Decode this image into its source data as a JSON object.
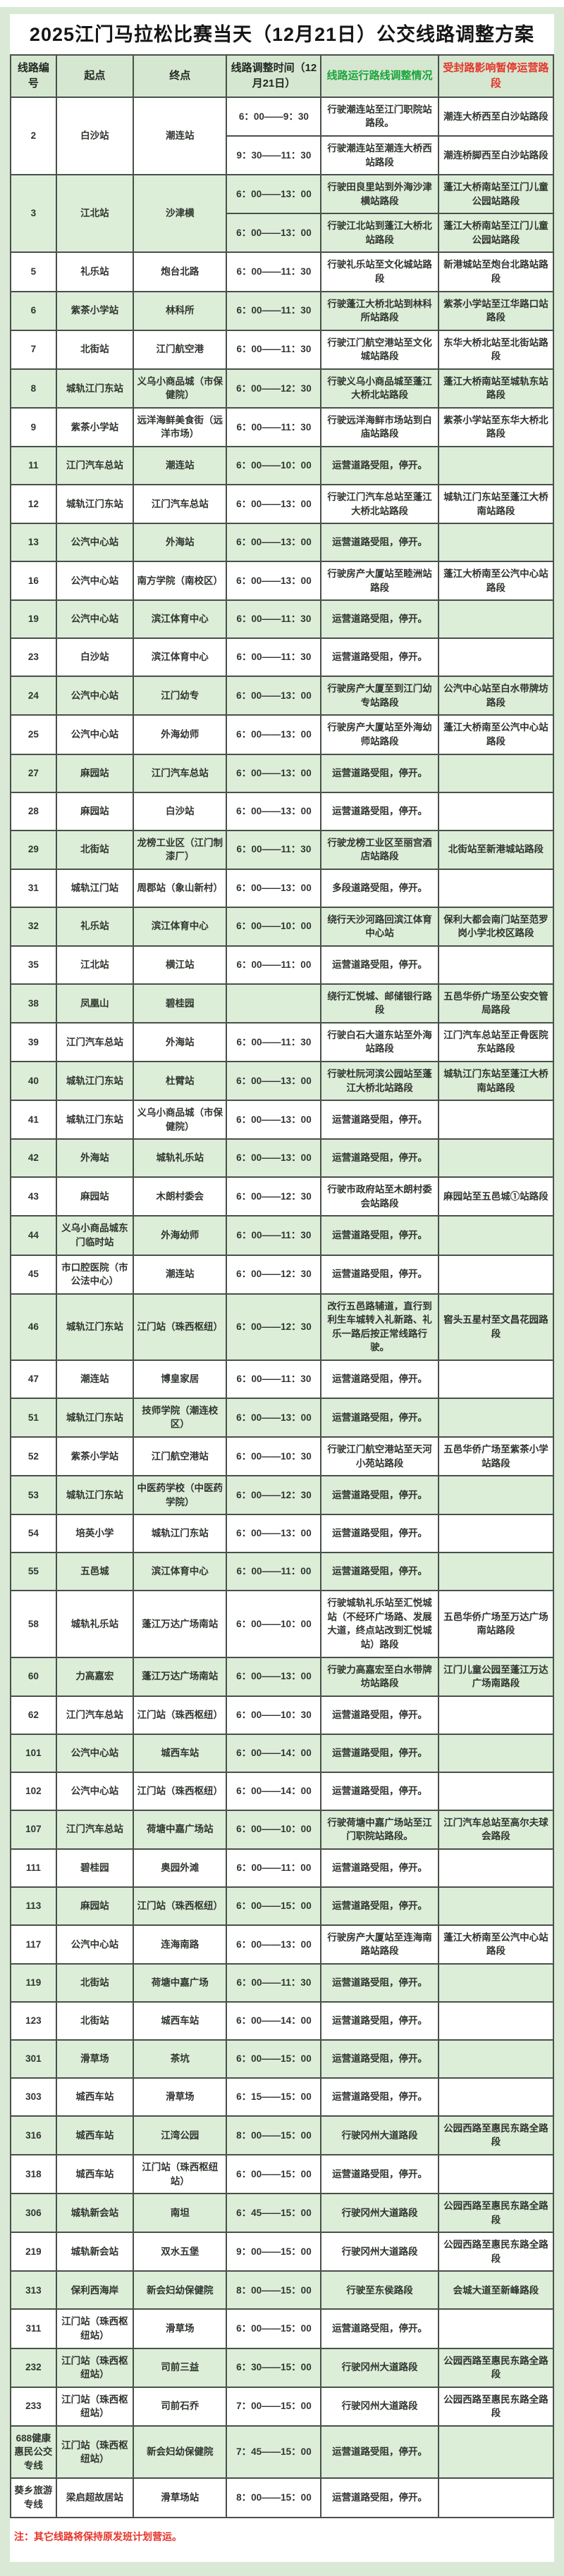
{
  "title": "2025江门马拉松比赛当天（12月21日）公交线路调整方案",
  "note": "注：其它线路将保持原发班计划营运。",
  "colors": {
    "page_bg": "#d9e9d5",
    "row_green": "#dcedd8",
    "header_bg": "#d5e7d0",
    "header_green_text": "#1ba43c",
    "header_red_text": "#e5342a",
    "border": "#49504a"
  },
  "table": {
    "headers": [
      "线路编号",
      "起点",
      "终点",
      "线路调整时间（12月21日）",
      "线路运行路线调整情况",
      "受封路影响暂停运营路段"
    ],
    "rows": [
      {
        "no": "2",
        "start": "白沙站",
        "end": "潮连站",
        "subs": [
          {
            "time": "6：00——9：30",
            "adjust": "行驶潮连站至江门职院站路段。",
            "suspended": "潮连大桥西至白沙站路段"
          },
          {
            "time": "9：30——11：30",
            "adjust": "行驶潮连站至潮连大桥西站路段",
            "suspended": "潮连桥脚西至白沙站路段"
          }
        ]
      },
      {
        "no": "3",
        "start": "江北站",
        "end": "沙津横",
        "subs": [
          {
            "time": "6：00——13：00",
            "adjust": "行驶田良里站到外海沙津横站路段",
            "suspended": "蓬江大桥南站至江门儿童公园站路段"
          },
          {
            "time": "6：00——13：00",
            "adjust": "行驶江北站到蓬江大桥北站路段",
            "suspended": "蓬江大桥南站至江门儿童公园站路段"
          }
        ]
      },
      {
        "no": "5",
        "start": "礼乐站",
        "end": "炮台北路",
        "subs": [
          {
            "time": "6：00——11：30",
            "adjust": "行驶礼乐站至文化城站路段",
            "suspended": "新港城站至炮台北路站路段"
          }
        ]
      },
      {
        "no": "6",
        "start": "紫茶小学站",
        "end": "林科所",
        "subs": [
          {
            "time": "6：00——11：30",
            "adjust": "行驶蓬江大桥北站到林科所站路段",
            "suspended": "紫茶小学站至江华路口站路段"
          }
        ]
      },
      {
        "no": "7",
        "start": "北街站",
        "end": "江门航空港",
        "subs": [
          {
            "time": "6：00——11：30",
            "adjust": "行驶江门航空港站至文化城站路段",
            "suspended": "东华大桥北站至北街站路段"
          }
        ]
      },
      {
        "no": "8",
        "start": "城轨江门东站",
        "end": "义乌小商品城（市保健院）",
        "subs": [
          {
            "time": "6：00——12：30",
            "adjust": "行驶义乌小商品城至蓬江大桥北站路段",
            "suspended": "蓬江大桥南站至城轨东站路段"
          }
        ]
      },
      {
        "no": "9",
        "start": "紫茶小学站",
        "end": "远洋海鲜美食街（远洋市场）",
        "subs": [
          {
            "time": "6：00——11：30",
            "adjust": "行驶远洋海鲜市场站到白庙站路段",
            "suspended": "紫茶小学站至东华大桥北路段"
          }
        ]
      },
      {
        "no": "11",
        "start": "江门汽车总站",
        "end": "潮连站",
        "subs": [
          {
            "time": "6：00——10：00",
            "adjust": "运营道路受阻，停开。",
            "suspended": ""
          }
        ]
      },
      {
        "no": "12",
        "start": "城轨江门东站",
        "end": "江门汽车总站",
        "subs": [
          {
            "time": "6：00——13：00",
            "adjust": "行驶江门汽车总站至蓬江大桥北站路段",
            "suspended": "城轨江门东站至蓬江大桥南站路段"
          }
        ]
      },
      {
        "no": "13",
        "start": "公汽中心站",
        "end": "外海站",
        "subs": [
          {
            "time": "6：00——13：00",
            "adjust": "运营道路受阻，停开。",
            "suspended": ""
          }
        ]
      },
      {
        "no": "16",
        "start": "公汽中心站",
        "end": "南方学院（南校区）",
        "subs": [
          {
            "time": "6：00——13：00",
            "adjust": "行驶房产大厦站至睦洲站路段",
            "suspended": "蓬江大桥南至公汽中心站路段"
          }
        ]
      },
      {
        "no": "19",
        "start": "公汽中心站",
        "end": "滨江体育中心",
        "subs": [
          {
            "time": "6：00——11：30",
            "adjust": "运营道路受阻，停开。",
            "suspended": ""
          }
        ]
      },
      {
        "no": "23",
        "start": "白沙站",
        "end": "滨江体育中心",
        "subs": [
          {
            "time": "6：00——11：30",
            "adjust": "运营道路受阻，停开。",
            "suspended": ""
          }
        ]
      },
      {
        "no": "24",
        "start": "公汽中心站",
        "end": "江门幼专",
        "subs": [
          {
            "time": "6：00——13：00",
            "adjust": "行驶房产大厦至到江门幼专站路段",
            "suspended": "公汽中心站至白水带牌坊路段"
          }
        ]
      },
      {
        "no": "25",
        "start": "公汽中心站",
        "end": "外海幼师",
        "subs": [
          {
            "time": "6：00——13：00",
            "adjust": "行驶房产大厦站至外海幼师站路段",
            "suspended": "蓬江大桥南至公汽中心站路段"
          }
        ]
      },
      {
        "no": "27",
        "start": "麻园站",
        "end": "江门汽车总站",
        "subs": [
          {
            "time": "6：00——13：00",
            "adjust": "运营道路受阻，停开。",
            "suspended": ""
          }
        ]
      },
      {
        "no": "28",
        "start": "麻园站",
        "end": "白沙站",
        "subs": [
          {
            "time": "6：00——13：00",
            "adjust": "运营道路受阻，停开。",
            "suspended": ""
          }
        ]
      },
      {
        "no": "29",
        "start": "北街站",
        "end": "龙榜工业区（江门制漆厂）",
        "subs": [
          {
            "time": "6：00——11：30",
            "adjust": "行驶龙榜工业区至丽宫酒店站路段",
            "suspended": "北街站至新港城站路段"
          }
        ]
      },
      {
        "no": "31",
        "start": "城轨江门站",
        "end": "周郡站（象山新村）",
        "subs": [
          {
            "time": "6：00——13：00",
            "adjust": "多段道路受阻，停开。",
            "suspended": ""
          }
        ]
      },
      {
        "no": "32",
        "start": "礼乐站",
        "end": "滨江体育中心",
        "subs": [
          {
            "time": "6：00——10：00",
            "adjust": "绕行天沙河路回滨江体育中心站",
            "suspended": "保利大都会南门站至范罗岗小学北校区路段"
          }
        ]
      },
      {
        "no": "35",
        "start": "江北站",
        "end": "横江站",
        "subs": [
          {
            "time": "6：00——11：00",
            "adjust": "运营道路受阻，停开。",
            "suspended": ""
          }
        ]
      },
      {
        "no": "38",
        "start": "凤凰山",
        "end": "碧桂园",
        "subs": [
          {
            "time": "",
            "adjust": "绕行汇悦城、邮储银行路段",
            "suspended": "五邑华侨广场至公安交管局路段"
          }
        ]
      },
      {
        "no": "39",
        "start": "江门汽车总站",
        "end": "外海站",
        "subs": [
          {
            "time": "6：00——11：30",
            "adjust": "行驶白石大道东站至外海站路段",
            "suspended": "江门汽车总站至正骨医院东站路段"
          }
        ]
      },
      {
        "no": "40",
        "start": "城轨江门东站",
        "end": "杜臂站",
        "subs": [
          {
            "time": "6：00——13：00",
            "adjust": "行驶杜阮河滨公园站至蓬江大桥北站路段",
            "suspended": "城轨江门东站至蓬江大桥南站路段"
          }
        ]
      },
      {
        "no": "41",
        "start": "城轨江门东站",
        "end": "义乌小商品城（市保健院）",
        "subs": [
          {
            "time": "6：00——13：00",
            "adjust": "运营道路受阻，停开。",
            "suspended": ""
          }
        ]
      },
      {
        "no": "42",
        "start": "外海站",
        "end": "城轨礼乐站",
        "subs": [
          {
            "time": "6：00——13：00",
            "adjust": "运营道路受阻，停开。",
            "suspended": ""
          }
        ]
      },
      {
        "no": "43",
        "start": "麻园站",
        "end": "木朗村委会",
        "subs": [
          {
            "time": "6：00——12：30",
            "adjust": "行驶市政府站至木朗村委会站路段",
            "suspended": "麻园站至五邑城①站路段"
          }
        ]
      },
      {
        "no": "44",
        "start": "义乌小商品城东门临时站",
        "end": "外海幼师",
        "subs": [
          {
            "time": "6：00——11：30",
            "adjust": "运营道路受阻，停开。",
            "suspended": ""
          }
        ]
      },
      {
        "no": "45",
        "start": "市口腔医院（市公法中心）",
        "end": "潮连站",
        "subs": [
          {
            "time": "6：00——12：30",
            "adjust": "运营道路受阻，停开。",
            "suspended": ""
          }
        ]
      },
      {
        "no": "46",
        "start": "城轨江门东站",
        "end": "江门站（珠西枢纽）",
        "subs": [
          {
            "time": "6：00——12：30",
            "adjust": "改行五邑路辅道，直行到利生车城转入礼新路、礼乐一路后按正常线路行驶。",
            "suspended": "窖头五星村至文昌花园路段"
          }
        ]
      },
      {
        "no": "47",
        "start": "潮连站",
        "end": "博皇家居",
        "subs": [
          {
            "time": "6：00——11：30",
            "adjust": "运营道路受阻，停开。",
            "suspended": ""
          }
        ]
      },
      {
        "no": "51",
        "start": "城轨江门东站",
        "end": "技师学院（潮连校区）",
        "subs": [
          {
            "time": "6：00——13：00",
            "adjust": "运营道路受阻，停开。",
            "suspended": ""
          }
        ]
      },
      {
        "no": "52",
        "start": "紫茶小学站",
        "end": "江门航空港站",
        "subs": [
          {
            "time": "6：00——10：30",
            "adjust": "行驶江门航空港站至天河小苑站路段",
            "suspended": "五邑华侨广场至紫茶小学站路段"
          }
        ]
      },
      {
        "no": "53",
        "start": "城轨江门东站",
        "end": "中医药学校（中医药学院）",
        "subs": [
          {
            "time": "6：00——12：30",
            "adjust": "运营道路受阻，停开。",
            "suspended": ""
          }
        ]
      },
      {
        "no": "54",
        "start": "培英小学",
        "end": "城轨江门东站",
        "subs": [
          {
            "time": "6：00——13：00",
            "adjust": "运营道路受阻，停开。",
            "suspended": ""
          }
        ]
      },
      {
        "no": "55",
        "start": "五邑城",
        "end": "滨江体育中心",
        "subs": [
          {
            "time": "6：00——11：00",
            "adjust": "运营道路受阻，停开。",
            "suspended": ""
          }
        ]
      },
      {
        "no": "58",
        "start": "城轨礼乐站",
        "end": "蓬江万达广场南站",
        "subs": [
          {
            "time": "6：00——10：00",
            "adjust": "行驶城轨礼乐站至汇悦城站（不经环广场路、发展大道，终点站改到汇悦城站）路段",
            "suspended": "五邑华侨广场至万达广场南站路段"
          }
        ]
      },
      {
        "no": "60",
        "start": "力高嘉宏",
        "end": "蓬江万达广场南站",
        "subs": [
          {
            "time": "6：00——13：00",
            "adjust": "行驶力高嘉宏至白水带牌坊站路段",
            "suspended": "江门儿童公园至蓬江万达广场南路段"
          }
        ]
      },
      {
        "no": "62",
        "start": "江门汽车总站",
        "end": "江门站（珠西枢纽）",
        "subs": [
          {
            "time": "6：00——10：30",
            "adjust": "运营道路受阻，停开。",
            "suspended": ""
          }
        ]
      },
      {
        "no": "101",
        "start": "公汽中心站",
        "end": "城西车站",
        "subs": [
          {
            "time": "6：00——14：00",
            "adjust": "运营道路受阻，停开。",
            "suspended": ""
          }
        ]
      },
      {
        "no": "102",
        "start": "公汽中心站",
        "end": "江门站（珠西枢纽）",
        "subs": [
          {
            "time": "6：00——14：00",
            "adjust": "运营道路受阻，停开。",
            "suspended": ""
          }
        ]
      },
      {
        "no": "107",
        "start": "江门汽车总站",
        "end": "荷塘中嘉广场站",
        "subs": [
          {
            "time": "6：00——10：00",
            "adjust": "行驶荷塘中嘉广场站至江门职院站路段。",
            "suspended": "江门汽车总站至高尔夫球会路段"
          }
        ]
      },
      {
        "no": "111",
        "start": "碧桂园",
        "end": "奥园外滩",
        "subs": [
          {
            "time": "6：00——11：00",
            "adjust": "运营道路受阻，停开。",
            "suspended": ""
          }
        ]
      },
      {
        "no": "113",
        "start": "麻园站",
        "end": "江门站（珠西枢纽）",
        "subs": [
          {
            "time": "6：00——15：00",
            "adjust": "运营道路受阻，停开。",
            "suspended": ""
          }
        ]
      },
      {
        "no": "117",
        "start": "公汽中心站",
        "end": "连海南路",
        "subs": [
          {
            "time": "6：00——13：00",
            "adjust": "行驶房产大厦站至连海南路站路段",
            "suspended": "蓬江大桥南至公汽中心站路段"
          }
        ]
      },
      {
        "no": "119",
        "start": "北街站",
        "end": "荷塘中嘉广场",
        "subs": [
          {
            "time": "6：00——11：30",
            "adjust": "运营道路受阻，停开。",
            "suspended": ""
          }
        ]
      },
      {
        "no": "123",
        "start": "北街站",
        "end": "城西车站",
        "subs": [
          {
            "time": "6：00——14：00",
            "adjust": "运营道路受阻，停开。",
            "suspended": ""
          }
        ]
      },
      {
        "no": "301",
        "start": "滑草场",
        "end": "茶坑",
        "subs": [
          {
            "time": "6：00——15：00",
            "adjust": "运营道路受阻，停开。",
            "suspended": ""
          }
        ]
      },
      {
        "no": "303",
        "start": "城西车站",
        "end": "滑草场",
        "subs": [
          {
            "time": "6：15——15：00",
            "adjust": "运营道路受阻，停开。",
            "suspended": ""
          }
        ]
      },
      {
        "no": "316",
        "start": "城西车站",
        "end": "江湾公园",
        "subs": [
          {
            "time": "8：00——15：00",
            "adjust": "行驶冈州大道路段",
            "suspended": "公园西路至惠民东路全路段"
          }
        ]
      },
      {
        "no": "318",
        "start": "城西车站",
        "end": "江门站（珠西枢纽站）",
        "subs": [
          {
            "time": "6：00——15：00",
            "adjust": "运营道路受阻，停开。",
            "suspended": ""
          }
        ]
      },
      {
        "no": "306",
        "start": "城轨新会站",
        "end": "南坦",
        "subs": [
          {
            "time": "6：45——15：00",
            "adjust": "行驶冈州大道路段",
            "suspended": "公园西路至惠民东路全路段"
          }
        ]
      },
      {
        "no": "219",
        "start": "城轨新会站",
        "end": "双水五堡",
        "subs": [
          {
            "time": "9：00——15：00",
            "adjust": "行驶冈州大道路段",
            "suspended": "公园西路至惠民东路全路段"
          }
        ]
      },
      {
        "no": "313",
        "start": "保利西海岸",
        "end": "新会妇幼保健院",
        "subs": [
          {
            "time": "8：00——15：00",
            "adjust": "行驶至东侯路段",
            "suspended": "会城大道至新峰路段"
          }
        ]
      },
      {
        "no": "311",
        "start": "江门站（珠西枢纽站）",
        "end": "滑草场",
        "subs": [
          {
            "time": "6：00——15：00",
            "adjust": "运营道路受阻，停开。",
            "suspended": ""
          }
        ]
      },
      {
        "no": "232",
        "start": "江门站（珠西枢纽站）",
        "end": "司前三益",
        "subs": [
          {
            "time": "6：30——15：00",
            "adjust": "行驶冈州大道路段",
            "suspended": "公园西路至惠民东路全路段"
          }
        ]
      },
      {
        "no": "233",
        "start": "江门站（珠西枢纽站）",
        "end": "司前石乔",
        "subs": [
          {
            "time": "7：00——15：00",
            "adjust": "行驶冈州大道路段",
            "suspended": "公园西路至惠民东路全路段"
          }
        ]
      },
      {
        "no": "688健康惠民公交专线",
        "start": "江门站（珠西枢纽站）",
        "end": "新会妇幼保健院",
        "subs": [
          {
            "time": "7：45——15：00",
            "adjust": "运营道路受阻，停开。",
            "suspended": ""
          }
        ]
      },
      {
        "no": "葵乡旅游专线",
        "start": "梁启超故居站",
        "end": "滑草场站",
        "subs": [
          {
            "time": "8：00——15：00",
            "adjust": "运营道路受阻，停开。",
            "suspended": ""
          }
        ]
      }
    ]
  }
}
